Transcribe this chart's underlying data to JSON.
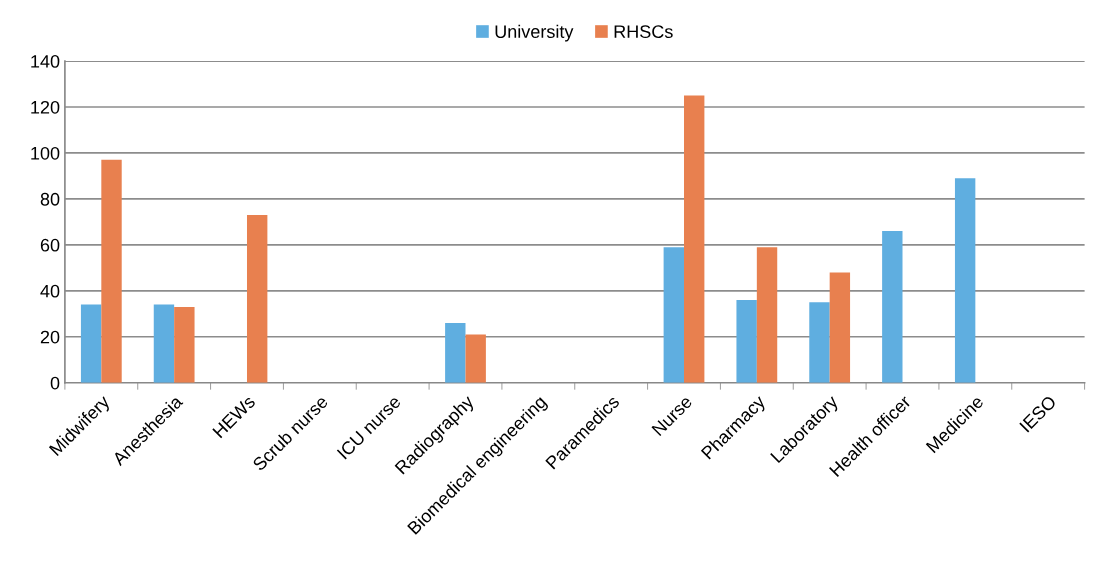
{
  "chart_data": {
    "type": "bar",
    "categories": [
      "Midwifery",
      "Anesthesia",
      "HEWs",
      "Scrub nurse",
      "ICU nurse",
      "Radiography",
      "Biomedical engineering",
      "Paramedics",
      "Nurse",
      "Pharmacy",
      "Laboratory",
      "Health officer",
      "Medicine",
      "IESO"
    ],
    "series": [
      {
        "name": "University",
        "color": "#5faee0",
        "values": [
          34,
          34,
          null,
          null,
          null,
          26,
          null,
          null,
          59,
          36,
          35,
          66,
          89,
          null
        ]
      },
      {
        "name": "RHSCs",
        "color": "#e8804f",
        "values": [
          97,
          33,
          73,
          null,
          null,
          21,
          null,
          null,
          125,
          59,
          48,
          null,
          null,
          null
        ]
      }
    ],
    "ylim": [
      0,
      140
    ],
    "yticks": [
      0,
      20,
      40,
      60,
      80,
      100,
      120,
      140
    ],
    "grid": "y",
    "legend": "top"
  }
}
